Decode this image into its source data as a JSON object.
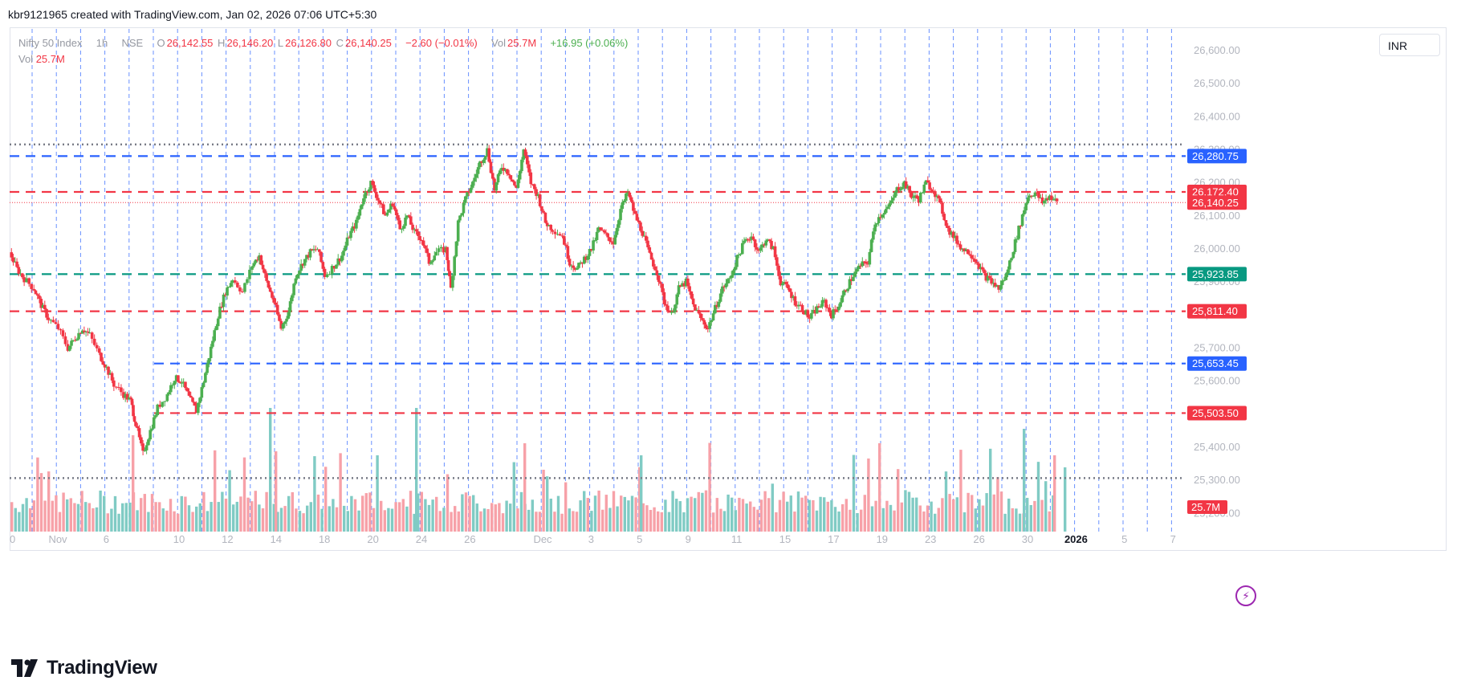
{
  "header": {
    "text": "kbr9121965 created with TradingView.com, Jan 02, 2026 07:06 UTC+5:30"
  },
  "legend": {
    "symbol": "Nifty 50 Index",
    "interval": "1h",
    "exchange": "NSE",
    "o_label": "O",
    "o_value": "26,142.55",
    "h_label": "H",
    "h_value": "26,146.20",
    "l_label": "L",
    "l_value": "26,126.80",
    "c_label": "C",
    "c_value": "26,140.25",
    "change": "−2.60 (−0.01%)",
    "vol_label": "Vol",
    "vol_value": "25.7M",
    "vol_change": "+16.95 (+0.06%)",
    "vol2_label": "Vol",
    "vol2_value": "25.7M"
  },
  "currency": "INR",
  "footer": {
    "brand": "TradingView"
  },
  "colors": {
    "up": "#4caf50",
    "down": "#f23645",
    "vol_up": "#80cbc4",
    "vol_down": "#f7a1a8",
    "blue_line": "#2962ff",
    "green_line": "#089981",
    "dotted": "#787b86"
  },
  "chart_data": {
    "type": "candlestick",
    "symbol": "Nifty 50 Index",
    "interval": "1h",
    "ylim": [
      25150,
      26680
    ],
    "y_ticks": [
      "26,600.00",
      "26,500.00",
      "26,400.00",
      "26,300.00",
      "26,200.00",
      "26,100.00",
      "26,000.00",
      "25,900.00",
      "25,800.00",
      "25,700.00",
      "25,600.00",
      "25,500.00",
      "25,400.00",
      "25,300.00",
      "25,200.00"
    ],
    "y_tick_values": [
      26600,
      26500,
      26400,
      26300,
      26200,
      26100,
      26000,
      25900,
      25800,
      25700,
      25600,
      25500,
      25400,
      25300,
      25200
    ],
    "x_ticks": [
      "0",
      "Nov",
      "6",
      "10",
      "12",
      "14",
      "18",
      "20",
      "24",
      "26",
      "Dec",
      "3",
      "5",
      "9",
      "11",
      "15",
      "17",
      "19",
      "23",
      "26",
      "30",
      "2026",
      "5",
      "7"
    ],
    "x_tick_index": [
      0,
      1,
      3,
      6,
      8,
      10,
      12,
      14,
      16,
      18,
      21,
      23,
      25,
      27,
      29,
      31,
      33,
      35,
      37,
      39,
      41,
      43,
      45,
      47
    ],
    "horizontal_levels": [
      {
        "value": 26316,
        "style": "dotted",
        "color": "#787b86"
      },
      {
        "value": 26280.75,
        "label": "26,280.75",
        "style": "dashed",
        "color": "#2962ff"
      },
      {
        "value": 26172.4,
        "label": "26,172.40",
        "style": "dashed",
        "color": "#f23645"
      },
      {
        "value": 26140.25,
        "label": "26,140.25",
        "style": "last",
        "color": "#f23645"
      },
      {
        "value": 25923.85,
        "label": "25,923.85",
        "style": "dashed",
        "color": "#089981"
      },
      {
        "value": 25811.4,
        "label": "25,811.40",
        "style": "dashed",
        "color": "#f23645"
      },
      {
        "value": 25653.45,
        "label": "25,653.45",
        "style": "dashed",
        "color": "#2962ff",
        "from_index": 6
      },
      {
        "value": 25503.5,
        "label": "25,503.50",
        "style": "dashed",
        "color": "#f23645",
        "from_index": 6
      },
      {
        "value": 25307,
        "style": "dotted",
        "color": "#787b86"
      }
    ],
    "volume_label": "25.7M",
    "close_path": [
      [
        0,
        25990
      ],
      [
        0.3,
        25940
      ],
      [
        0.6,
        25910
      ],
      [
        1.0,
        25880
      ],
      [
        1.3,
        25830
      ],
      [
        1.6,
        25790
      ],
      [
        2.0,
        25760
      ],
      [
        2.4,
        25700
      ],
      [
        2.7,
        25730
      ],
      [
        3.0,
        25760
      ],
      [
        3.3,
        25740
      ],
      [
        3.7,
        25680
      ],
      [
        4.0,
        25640
      ],
      [
        4.3,
        25590
      ],
      [
        4.7,
        25560
      ],
      [
        5.0,
        25540
      ],
      [
        5.2,
        25470
      ],
      [
        5.5,
        25380
      ],
      [
        5.8,
        25450
      ],
      [
        6.1,
        25520
      ],
      [
        6.5,
        25560
      ],
      [
        6.8,
        25610
      ],
      [
        7.1,
        25600
      ],
      [
        7.4,
        25550
      ],
      [
        7.7,
        25510
      ],
      [
        8.0,
        25600
      ],
      [
        8.3,
        25700
      ],
      [
        8.6,
        25800
      ],
      [
        8.9,
        25870
      ],
      [
        9.2,
        25910
      ],
      [
        9.6,
        25870
      ],
      [
        10.0,
        25950
      ],
      [
        10.3,
        25980
      ],
      [
        10.6,
        25900
      ],
      [
        10.9,
        25840
      ],
      [
        11.2,
        25760
      ],
      [
        11.5,
        25810
      ],
      [
        11.8,
        25920
      ],
      [
        12.1,
        25960
      ],
      [
        12.4,
        25990
      ],
      [
        12.7,
        26000
      ],
      [
        13.0,
        25920
      ],
      [
        13.4,
        25950
      ],
      [
        13.7,
        25980
      ],
      [
        14.0,
        26040
      ],
      [
        14.3,
        26080
      ],
      [
        14.6,
        26160
      ],
      [
        14.9,
        26200
      ],
      [
        15.2,
        26150
      ],
      [
        15.5,
        26100
      ],
      [
        15.8,
        26140
      ],
      [
        16.1,
        26060
      ],
      [
        16.4,
        26100
      ],
      [
        16.7,
        26050
      ],
      [
        17.0,
        26030
      ],
      [
        17.3,
        25960
      ],
      [
        17.6,
        25990
      ],
      [
        18.0,
        26000
      ],
      [
        18.2,
        25880
      ],
      [
        18.5,
        26080
      ],
      [
        18.8,
        26150
      ],
      [
        19.1,
        26200
      ],
      [
        19.4,
        26260
      ],
      [
        19.7,
        26300
      ],
      [
        20.0,
        26180
      ],
      [
        20.3,
        26250
      ],
      [
        20.6,
        26230
      ],
      [
        20.9,
        26180
      ],
      [
        21.2,
        26300
      ],
      [
        21.5,
        26200
      ],
      [
        21.8,
        26160
      ],
      [
        22.1,
        26080
      ],
      [
        22.4,
        26060
      ],
      [
        22.8,
        26040
      ],
      [
        23.1,
        25960
      ],
      [
        23.4,
        25940
      ],
      [
        23.7,
        25970
      ],
      [
        24.0,
        26000
      ],
      [
        24.3,
        26060
      ],
      [
        24.6,
        26040
      ],
      [
        24.9,
        26020
      ],
      [
        25.2,
        26120
      ],
      [
        25.5,
        26170
      ],
      [
        25.8,
        26100
      ],
      [
        26.1,
        26050
      ],
      [
        26.4,
        25980
      ],
      [
        26.7,
        25930
      ],
      [
        27.0,
        25840
      ],
      [
        27.3,
        25800
      ],
      [
        27.6,
        25880
      ],
      [
        27.9,
        25900
      ],
      [
        28.2,
        25830
      ],
      [
        28.5,
        25790
      ],
      [
        28.8,
        25760
      ],
      [
        29.1,
        25820
      ],
      [
        29.4,
        25880
      ],
      [
        29.7,
        25910
      ],
      [
        30.0,
        25970
      ],
      [
        30.3,
        26020
      ],
      [
        30.6,
        26040
      ],
      [
        30.9,
        25990
      ],
      [
        31.2,
        26030
      ],
      [
        31.5,
        26000
      ],
      [
        31.8,
        25900
      ],
      [
        32.1,
        25880
      ],
      [
        32.4,
        25840
      ],
      [
        32.7,
        25820
      ],
      [
        33.0,
        25790
      ],
      [
        33.3,
        25820
      ],
      [
        33.6,
        25840
      ],
      [
        33.9,
        25800
      ],
      [
        34.2,
        25830
      ],
      [
        34.5,
        25880
      ],
      [
        34.8,
        25920
      ],
      [
        35.1,
        25950
      ],
      [
        35.4,
        25960
      ],
      [
        35.7,
        26080
      ],
      [
        36.0,
        26110
      ],
      [
        36.3,
        26130
      ],
      [
        36.6,
        26180
      ],
      [
        36.9,
        26200
      ],
      [
        37.2,
        26160
      ],
      [
        37.5,
        26150
      ],
      [
        37.8,
        26200
      ],
      [
        38.1,
        26180
      ],
      [
        38.4,
        26130
      ],
      [
        38.7,
        26060
      ],
      [
        39.0,
        26030
      ],
      [
        39.3,
        26000
      ],
      [
        39.6,
        25990
      ],
      [
        39.9,
        25960
      ],
      [
        40.2,
        25920
      ],
      [
        40.5,
        25900
      ],
      [
        40.8,
        25880
      ],
      [
        41.1,
        25920
      ],
      [
        41.4,
        26000
      ],
      [
        41.7,
        26080
      ],
      [
        42.0,
        26160
      ],
      [
        42.3,
        26170
      ],
      [
        42.6,
        26140
      ],
      [
        42.9,
        26160
      ],
      [
        43.2,
        26140
      ]
    ]
  }
}
